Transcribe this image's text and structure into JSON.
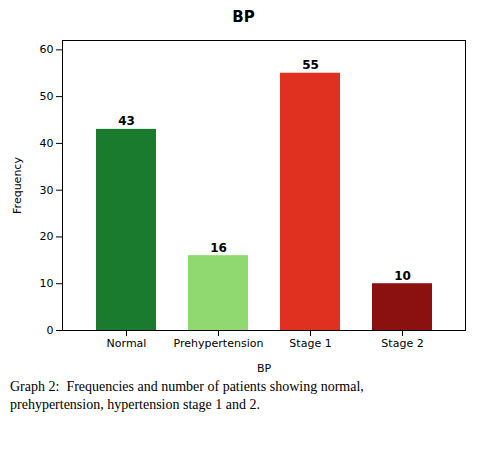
{
  "chart_data": {
    "type": "bar",
    "title": "BP",
    "xlabel": "BP",
    "ylabel": "Frequency",
    "categories": [
      "Normal",
      "Prehypertension",
      "Stage 1",
      "Stage 2"
    ],
    "values": [
      43,
      16,
      55,
      10
    ],
    "colors": [
      "#1a7a2e",
      "#90d870",
      "#e03020",
      "#8b1010"
    ],
    "ylim": [
      0,
      62
    ],
    "yticks": [
      0,
      10,
      20,
      30,
      40,
      50,
      60
    ],
    "grid": false,
    "data_labels": true,
    "caption": [
      "Graph 2:  Frequencies and number of patients showing normal,",
      "prehypertension, hypertension stage 1 and 2."
    ]
  }
}
